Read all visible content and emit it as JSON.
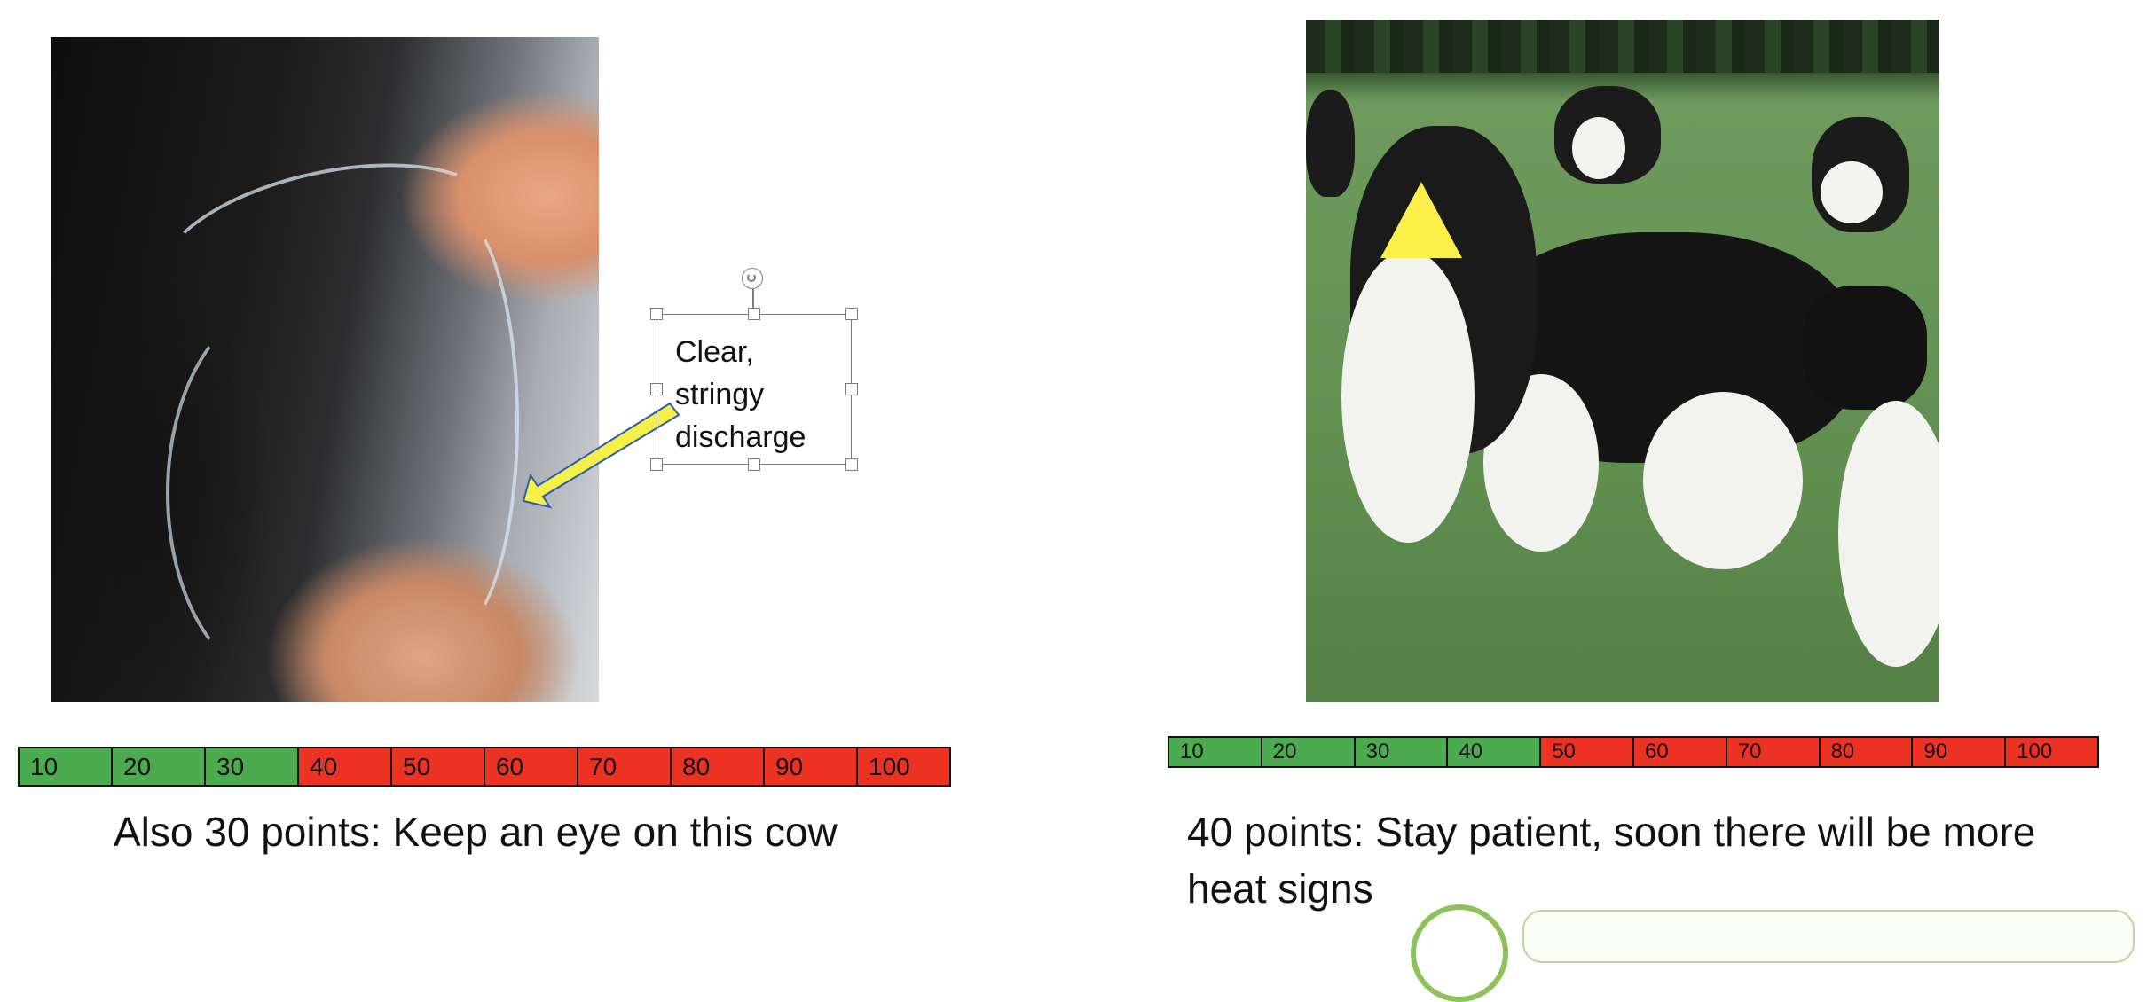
{
  "callout": {
    "lines": [
      "Clear,",
      "stringy",
      "discharge"
    ],
    "arrow_color": "#f6ef4a"
  },
  "scale_left": {
    "labels": [
      "10",
      "20",
      "30",
      "40",
      "50",
      "60",
      "70",
      "80",
      "90",
      "100"
    ],
    "green_count": 3
  },
  "scale_right": {
    "labels": [
      "10",
      "20",
      "30",
      "40",
      "50",
      "60",
      "70",
      "80",
      "90",
      "100"
    ],
    "green_count": 4
  },
  "captions": {
    "left": "Also 30 points: Keep an eye on this cow",
    "right": "40 points: Stay patient, soon there will be more heat signs"
  },
  "colors": {
    "green": "#4caa50",
    "red": "#ec3323",
    "marker_yellow": "#fbf04a"
  },
  "icons": {
    "rotate_handle": "rotate-icon",
    "marker": "triangle-marker"
  }
}
